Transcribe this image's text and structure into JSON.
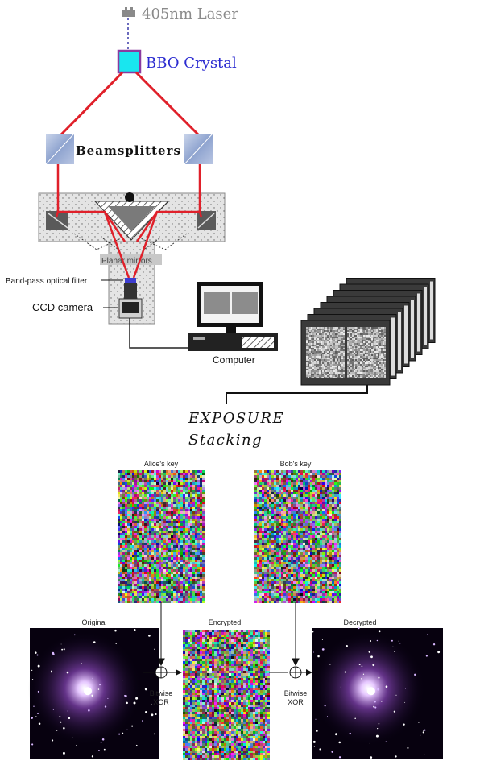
{
  "labels": {
    "laser": "405nm Laser",
    "bbo": "BBO Crystal",
    "beamsplitters": "Beamsplitters",
    "planar_mirrors": "Planar mirrors",
    "bandpass": "Band-pass optical filter",
    "ccd": "CCD camera",
    "computer": "Computer",
    "exposure_line1": "EXPOSURE",
    "exposure_line2": "Stacking",
    "alice": "Alice's key",
    "bob": "Bob's key",
    "original": "Original",
    "encrypted": "Encrypted",
    "decrypted": "Decrypted",
    "xor_left_1": "Bitwise",
    "xor_left_2": "XOR",
    "xor_right_1": "Bitwise",
    "xor_right_2": "XOR",
    "xor_symbol": "⊕"
  },
  "colors": {
    "laser_line": "#3a3aa8",
    "beam": "#e0202a",
    "bbo_fill": "#19e6ef",
    "bbo_border": "#8a3aa0",
    "text_blue": "#2a2ad0",
    "text_gray": "#8a8a8a",
    "prism": "#9fb2d6",
    "nebula": "#7a3fa6"
  },
  "icons": {
    "xor": "circle-plus-icon",
    "laser": "laser-device-icon",
    "computer": "computer-icon",
    "camera": "ccd-camera-icon"
  }
}
